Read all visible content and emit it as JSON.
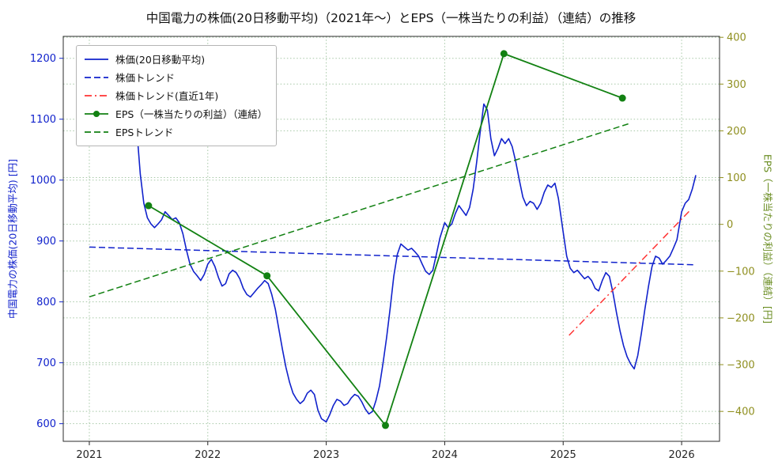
{
  "chart_data": {
    "type": "line",
    "title": "中国電力の株価(20日移動平均)（2021年～）とEPS（一株当たりの利益）（連結）の推移",
    "xlabel": "",
    "ylabel_left": "中国電力の株価(20日移動平均) [円]",
    "ylabel_right": "EPS（一株当たりの利益）（連結）[円]",
    "grid": true,
    "legend_position": "upper left",
    "x_ticks": [
      2021,
      2022,
      2023,
      2024,
      2025,
      2026
    ],
    "xlim": [
      2020.78,
      2026.32
    ],
    "yticks_left": [
      600,
      700,
      800,
      900,
      1000,
      1100,
      1200
    ],
    "ylim_left": [
      571,
      1236
    ],
    "yticks_right": [
      -400,
      -300,
      -200,
      -100,
      0,
      100,
      200,
      300,
      400
    ],
    "ylim_right": [
      -464,
      402
    ],
    "axis_colors": {
      "left": "#1122cc",
      "right_ticks": "#8f8f1f",
      "right_label": "#6b8e23",
      "x": "#262626"
    },
    "series": [
      {
        "key": "price-line",
        "name": "株価(20日移動平均)",
        "axis": "left",
        "color": "#1122cc",
        "style": "solid",
        "width": 1.6,
        "x": [
          2021.37,
          2021.4,
          2021.43,
          2021.46,
          2021.49,
          2021.52,
          2021.55,
          2021.58,
          2021.61,
          2021.64,
          2021.67,
          2021.7,
          2021.73,
          2021.76,
          2021.79,
          2021.82,
          2021.85,
          2021.88,
          2021.91,
          2021.94,
          2021.97,
          2022.0,
          2022.03,
          2022.06,
          2022.09,
          2022.12,
          2022.15,
          2022.18,
          2022.21,
          2022.24,
          2022.27,
          2022.3,
          2022.33,
          2022.36,
          2022.39,
          2022.42,
          2022.45,
          2022.48,
          2022.51,
          2022.54,
          2022.57,
          2022.6,
          2022.63,
          2022.66,
          2022.69,
          2022.72,
          2022.75,
          2022.78,
          2022.81,
          2022.84,
          2022.87,
          2022.9,
          2022.93,
          2022.96,
          2023.0,
          2023.03,
          2023.06,
          2023.09,
          2023.12,
          2023.15,
          2023.18,
          2023.21,
          2023.24,
          2023.27,
          2023.3,
          2023.33,
          2023.36,
          2023.39,
          2023.42,
          2023.45,
          2023.48,
          2023.51,
          2023.54,
          2023.57,
          2023.6,
          2023.63,
          2023.66,
          2023.69,
          2023.72,
          2023.75,
          2023.78,
          2023.81,
          2023.84,
          2023.87,
          2023.9,
          2023.93,
          2023.96,
          2024.0,
          2024.03,
          2024.06,
          2024.09,
          2024.12,
          2024.15,
          2024.18,
          2024.21,
          2024.24,
          2024.27,
          2024.3,
          2024.33,
          2024.36,
          2024.39,
          2024.42,
          2024.45,
          2024.48,
          2024.51,
          2024.54,
          2024.57,
          2024.6,
          2024.63,
          2024.66,
          2024.69,
          2024.72,
          2024.75,
          2024.78,
          2024.81,
          2024.84,
          2024.87,
          2024.9,
          2024.93,
          2024.96,
          2025.0,
          2025.03,
          2025.06,
          2025.09,
          2025.12,
          2025.15,
          2025.18,
          2025.21,
          2025.24,
          2025.27,
          2025.3,
          2025.33,
          2025.36,
          2025.39,
          2025.42,
          2025.45,
          2025.48,
          2025.51,
          2025.54,
          2025.57,
          2025.6,
          2025.63,
          2025.66,
          2025.69,
          2025.72,
          2025.75,
          2025.78,
          2025.81,
          2025.84,
          2025.87,
          2025.9,
          2025.93,
          2025.96,
          2026.0,
          2026.03,
          2026.06,
          2026.09,
          2026.12
        ],
        "y": [
          1152,
          1085,
          1010,
          962,
          938,
          928,
          922,
          928,
          935,
          948,
          942,
          935,
          938,
          930,
          912,
          885,
          862,
          850,
          843,
          835,
          845,
          862,
          870,
          858,
          840,
          826,
          830,
          846,
          852,
          848,
          838,
          822,
          812,
          808,
          815,
          822,
          828,
          835,
          830,
          812,
          788,
          755,
          722,
          692,
          668,
          650,
          640,
          633,
          638,
          650,
          655,
          648,
          622,
          608,
          603,
          615,
          630,
          640,
          637,
          630,
          633,
          642,
          648,
          645,
          636,
          624,
          616,
          620,
          638,
          662,
          700,
          742,
          790,
          842,
          878,
          895,
          890,
          885,
          888,
          882,
          875,
          862,
          850,
          845,
          852,
          878,
          905,
          930,
          922,
          928,
          945,
          958,
          950,
          942,
          955,
          985,
          1030,
          1080,
          1125,
          1115,
          1068,
          1040,
          1052,
          1068,
          1060,
          1068,
          1055,
          1030,
          1000,
          972,
          958,
          965,
          962,
          952,
          962,
          980,
          992,
          988,
          995,
          970,
          915,
          875,
          855,
          848,
          852,
          845,
          838,
          842,
          835,
          822,
          818,
          835,
          848,
          842,
          815,
          782,
          752,
          728,
          710,
          698,
          690,
          712,
          748,
          788,
          825,
          858,
          875,
          872,
          862,
          868,
          875,
          888,
          902,
          948,
          962,
          968,
          985,
          1008
        ]
      },
      {
        "key": "price-trend-line",
        "name": "株価トレンド",
        "axis": "left",
        "color": "#1122cc",
        "style": "dashed",
        "width": 1.5,
        "x": [
          2021.0,
          2026.1
        ],
        "y": [
          890,
          861
        ]
      },
      {
        "key": "price-trend-1y-line",
        "name": "株価トレンド(直近1年)",
        "axis": "left",
        "color": "#ff3333",
        "style": "dashdot",
        "width": 1.5,
        "x": [
          2025.05,
          2026.08
        ],
        "y": [
          745,
          952
        ]
      },
      {
        "key": "eps-line",
        "name": "EPS（一株当たりの利益）（連結）",
        "axis": "right",
        "color": "#128112",
        "style": "solid",
        "width": 1.8,
        "marker": "circle",
        "x": [
          2021.5,
          2022.5,
          2023.5,
          2024.5,
          2025.5
        ],
        "y": [
          40,
          -110,
          -430,
          365,
          270
        ]
      },
      {
        "key": "eps-trend-line",
        "name": "EPSトレンド",
        "axis": "right",
        "color": "#128112",
        "style": "dashed",
        "width": 1.5,
        "x": [
          2021.0,
          2025.55
        ],
        "y": [
          -155,
          215
        ]
      }
    ]
  }
}
